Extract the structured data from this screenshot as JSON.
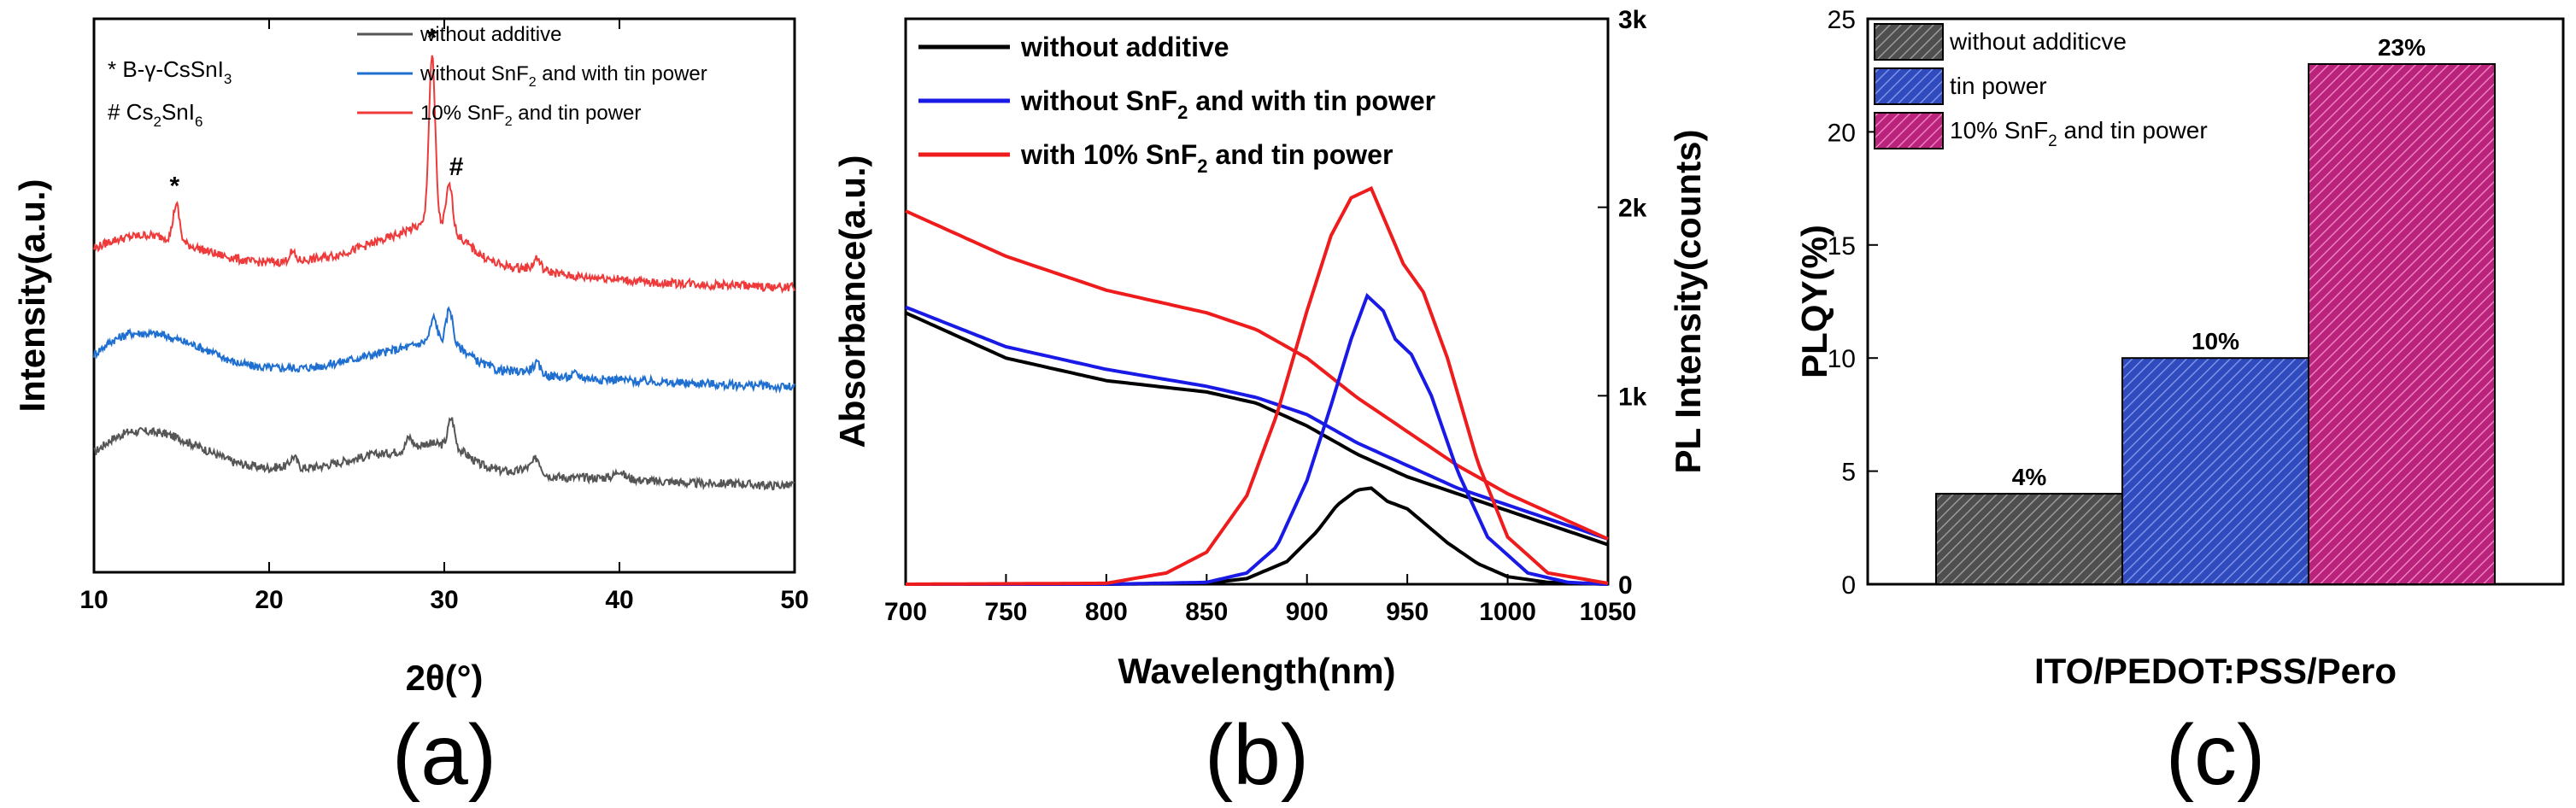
{
  "figure": {
    "panel_labels": [
      "(a)",
      "(b)",
      "(c)"
    ]
  },
  "chart_data": [
    {
      "type": "line",
      "panel": "(a)",
      "title": "",
      "xlabel": "2θ(°)",
      "ylabel": "Intensity(a.u.)",
      "xlim": [
        10,
        50
      ],
      "xticks": [
        "10",
        "20",
        "30",
        "40",
        "50"
      ],
      "y_ticks_shown": false,
      "legend_location": "top-right",
      "phase_key": [
        {
          "symbol": "*",
          "label": "B-γ-CsSnI₃"
        },
        {
          "symbol": "#",
          "label": "Cs₂SnI₆"
        }
      ],
      "peak_markers": [
        {
          "symbol": "*",
          "x": 14.6
        },
        {
          "symbol": "*",
          "x": 29.3
        },
        {
          "symbol": "#",
          "x": 30.3
        }
      ],
      "series": [
        {
          "name": "without additive",
          "color": "#555555",
          "offset": 0,
          "x": [
            10,
            11,
            12,
            13,
            14,
            15,
            16,
            17,
            18,
            19,
            20,
            21,
            22,
            23,
            24,
            25,
            26,
            27,
            28,
            29,
            30,
            31,
            32,
            33,
            34,
            35,
            36,
            37,
            38,
            39,
            40,
            41,
            42,
            43,
            44,
            45,
            46,
            47,
            48,
            49,
            50
          ],
          "y": [
            20,
            27,
            31,
            31,
            30,
            27,
            23,
            19,
            15,
            13,
            12,
            13,
            12,
            13,
            15,
            17,
            19,
            20,
            22,
            25,
            24,
            21,
            14,
            11,
            10,
            13,
            8,
            7,
            7,
            7,
            8,
            6,
            5,
            5,
            4,
            4,
            4,
            4,
            3,
            3,
            3
          ],
          "peaks": [
            {
              "x": 21.4,
              "y": 18
            },
            {
              "x": 28.0,
              "y": 28
            },
            {
              "x": 30.4,
              "y": 38
            },
            {
              "x": 35.3,
              "y": 17
            },
            {
              "x": 40.0,
              "y": 11
            }
          ]
        },
        {
          "name": "without SnF₂ and with tin power",
          "color": "#1f6fd0",
          "offset": 1,
          "x": [
            10,
            11,
            12,
            13,
            14,
            15,
            16,
            17,
            18,
            19,
            20,
            21,
            22,
            23,
            24,
            25,
            26,
            27,
            28,
            29,
            30,
            31,
            32,
            33,
            34,
            35,
            36,
            37,
            38,
            39,
            40,
            41,
            42,
            43,
            44,
            45,
            46,
            47,
            48,
            49,
            50
          ],
          "y": [
            20,
            27,
            31,
            31,
            30,
            27,
            24,
            20,
            16,
            14,
            13,
            13,
            13,
            14,
            16,
            18,
            20,
            22,
            24,
            27,
            27,
            23,
            16,
            12,
            11,
            12,
            9,
            8,
            8,
            7,
            7,
            6,
            6,
            5,
            5,
            5,
            4,
            4,
            4,
            3,
            3
          ],
          "peaks": [
            {
              "x": 29.4,
              "y": 39
            },
            {
              "x": 30.3,
              "y": 44
            },
            {
              "x": 35.3,
              "y": 15
            },
            {
              "x": 37.5,
              "y": 10
            }
          ]
        },
        {
          "name": "10% SnF₂ and tin power",
          "color": "#ee3a3a",
          "offset": 2,
          "x": [
            10,
            11,
            12,
            13,
            14,
            15,
            16,
            17,
            18,
            19,
            20,
            21,
            22,
            23,
            24,
            25,
            26,
            27,
            28,
            29,
            30,
            31,
            32,
            33,
            34,
            35,
            36,
            37,
            38,
            39,
            40,
            41,
            42,
            43,
            44,
            45,
            46,
            47,
            48,
            49,
            50
          ],
          "y": [
            24,
            28,
            30,
            31,
            30,
            27,
            24,
            21,
            19,
            17,
            17,
            17,
            18,
            19,
            21,
            24,
            27,
            30,
            34,
            37,
            36,
            29,
            21,
            16,
            14,
            14,
            12,
            10,
            9,
            9,
            8,
            7,
            6,
            6,
            6,
            5,
            5,
            5,
            4,
            4,
            4
          ],
          "peaks": [
            {
              "x": 14.7,
              "y": 47
            },
            {
              "x": 21.3,
              "y": 22
            },
            {
              "x": 29.3,
              "y": 124
            },
            {
              "x": 30.3,
              "y": 57
            },
            {
              "x": 35.3,
              "y": 19
            }
          ]
        }
      ]
    },
    {
      "type": "line",
      "panel": "(b)",
      "title": "",
      "xlabel": "Wavelength(nm)",
      "ylabel": "Absorbance(a.u.)",
      "y2label": "PL Intensity(counts)",
      "xlim": [
        700,
        1050
      ],
      "xticks": [
        "700",
        "750",
        "800",
        "850",
        "900",
        "950",
        "1000",
        "1050"
      ],
      "y2lim": [
        0,
        3000
      ],
      "y2ticks": [
        "0",
        "1k",
        "2k",
        "3k"
      ],
      "legend_location": "top-left",
      "legend": [
        {
          "name": "without additive",
          "color": "#000000"
        },
        {
          "name": "without SnF₂ and with tin power",
          "color": "#1a1ae6"
        },
        {
          "name": "with 10% SnF₂ and tin power",
          "color": "#ee1c1c"
        }
      ],
      "absorbance_series": [
        {
          "name": "without additive",
          "color": "#000000",
          "x": [
            700,
            750,
            800,
            850,
            875,
            900,
            925,
            950,
            975,
            1000,
            1025,
            1050
          ],
          "y": [
            0.48,
            0.4,
            0.36,
            0.34,
            0.32,
            0.28,
            0.23,
            0.19,
            0.16,
            0.13,
            0.1,
            0.07
          ]
        },
        {
          "name": "without SnF₂ and with tin power",
          "color": "#1a1ae6",
          "x": [
            700,
            750,
            800,
            850,
            875,
            900,
            925,
            950,
            975,
            1000,
            1025,
            1050
          ],
          "y": [
            0.49,
            0.42,
            0.38,
            0.35,
            0.33,
            0.3,
            0.25,
            0.21,
            0.17,
            0.14,
            0.11,
            0.08
          ]
        },
        {
          "name": "with 10% SnF₂ and tin power",
          "color": "#ee1c1c",
          "x": [
            700,
            750,
            800,
            850,
            875,
            900,
            925,
            950,
            975,
            1000,
            1025,
            1050
          ],
          "y": [
            0.66,
            0.58,
            0.52,
            0.48,
            0.45,
            0.4,
            0.33,
            0.27,
            0.21,
            0.16,
            0.12,
            0.08
          ]
        }
      ],
      "pl_series": [
        {
          "name": "without additive",
          "color": "#000000",
          "x": [
            700,
            800,
            850,
            870,
            890,
            905,
            915,
            925,
            932,
            940,
            950,
            960,
            970,
            985,
            1000,
            1020,
            1050
          ],
          "y": [
            0,
            0,
            5,
            30,
            120,
            280,
            420,
            500,
            510,
            440,
            400,
            310,
            220,
            110,
            40,
            10,
            0
          ]
        },
        {
          "name": "without SnF₂ and with tin power",
          "color": "#1a1ae6",
          "x": [
            700,
            800,
            850,
            870,
            885,
            900,
            912,
            922,
            930,
            938,
            944,
            952,
            962,
            975,
            990,
            1010,
            1030,
            1050
          ],
          "y": [
            0,
            0,
            10,
            60,
            200,
            550,
            950,
            1300,
            1530,
            1450,
            1300,
            1220,
            1000,
            600,
            250,
            60,
            10,
            0
          ]
        },
        {
          "name": "with 10% SnF₂ and tin power",
          "color": "#ee1c1c",
          "x": [
            700,
            800,
            830,
            850,
            870,
            885,
            900,
            912,
            922,
            932,
            940,
            948,
            958,
            970,
            985,
            1000,
            1020,
            1050
          ],
          "y": [
            0,
            5,
            60,
            170,
            470,
            900,
            1450,
            1850,
            2050,
            2100,
            1900,
            1700,
            1550,
            1200,
            650,
            250,
            60,
            5
          ]
        }
      ]
    },
    {
      "type": "bar",
      "panel": "(c)",
      "title": "",
      "xlabel": "ITO/PEDOT:PSS/Pero",
      "ylabel": "PLQY(%)",
      "ylim": [
        0,
        25
      ],
      "yticks": [
        "0",
        "5",
        "10",
        "15",
        "20",
        "25"
      ],
      "legend_location": "top-left",
      "series": [
        {
          "name": "without additicve",
          "value": 4,
          "label": "4%",
          "color": "#6b6b6b"
        },
        {
          "name": "tin power",
          "value": 10,
          "label": "10%",
          "color": "#3a57c9"
        },
        {
          "name": "10% SnF₂ and tin power",
          "value": 23,
          "label": "23%",
          "color": "#c8318a"
        }
      ]
    }
  ]
}
